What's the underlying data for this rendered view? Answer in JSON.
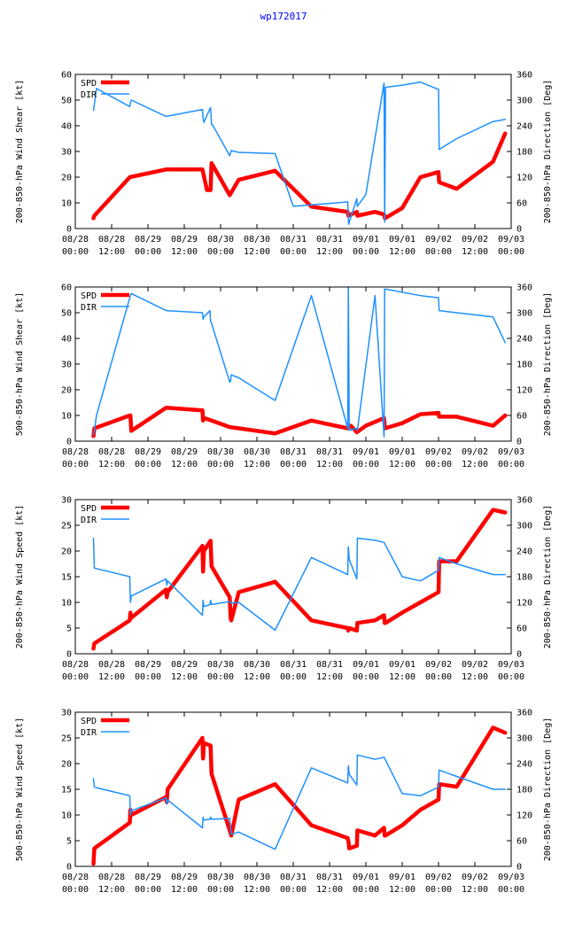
{
  "page_title": "wp172017",
  "colors": {
    "spd": "#ff0000",
    "dir": "#1e90ff",
    "title": "#0000ff",
    "axis": "#000000"
  },
  "chart_data": [
    {
      "type": "line",
      "ylabel": "200-850-hPa Wind Shear [kt]",
      "y2label": "200-850-hPa Direction [Deg]",
      "xlim": [
        0,
        144
      ],
      "ylim": [
        0,
        60
      ],
      "y2lim": [
        0,
        360
      ],
      "yticks": [
        "0",
        "10",
        "20",
        "30",
        "40",
        "50",
        "60"
      ],
      "y2ticks": [
        "0",
        "60",
        "120",
        "180",
        "240",
        "300",
        "360"
      ],
      "xticks_top": [
        "08/28",
        "08/28",
        "08/29",
        "08/29",
        "08/30",
        "08/30",
        "08/31",
        "08/31",
        "09/01",
        "09/01",
        "09/02",
        "09/02",
        "09/03"
      ],
      "xticks_bottom": [
        "00:00",
        "12:00",
        "00:00",
        "12:00",
        "00:00",
        "12:00",
        "00:00",
        "12:00",
        "00:00",
        "12:00",
        "00:00",
        "12:00",
        "00:00"
      ],
      "legend": [
        "SPD",
        "DIR"
      ],
      "series": [
        {
          "name": "SPD",
          "axis": "left",
          "x": [
            6,
            6.3,
            18,
            30,
            42,
            43.5,
            44.7,
            45,
            51,
            54,
            66,
            78,
            90,
            90.2,
            93,
            93.2,
            99,
            102,
            102.3,
            108,
            114,
            120,
            120.2,
            126,
            138,
            142
          ],
          "y": [
            4,
            5,
            20,
            23,
            23,
            15,
            15,
            25.5,
            13,
            19,
            22.5,
            8.5,
            6.5,
            5,
            6.5,
            5,
            6.5,
            5.5,
            4,
            8,
            20,
            22,
            18,
            15.5,
            26,
            37
          ]
        },
        {
          "name": "DIR",
          "axis": "right",
          "x": [
            6,
            6.3,
            7,
            18,
            18.2,
            18.5,
            30,
            42,
            42.2,
            42.5,
            44.5,
            44.7,
            45,
            45.5,
            51,
            51.5,
            54,
            66,
            72,
            90,
            90.3,
            93,
            93.2,
            96,
            102,
            102.2,
            102.5,
            108,
            114,
            120,
            120.2,
            126,
            138,
            142
          ],
          "y": [
            276,
            290,
            327,
            285,
            294,
            300,
            262,
            278,
            258,
            248,
            280,
            282,
            243,
            240,
            170,
            182,
            178,
            175,
            52,
            62,
            10,
            70,
            52,
            80,
            340,
            15,
            330,
            335,
            342,
            325,
            185,
            210,
            250,
            255
          ]
        }
      ]
    },
    {
      "type": "line",
      "ylabel": "500-850-hPa Wind Shear [kt]",
      "y2label": "200-850-hPa Direction [Deg]",
      "xlim": [
        0,
        144
      ],
      "ylim": [
        0,
        60
      ],
      "y2lim": [
        0,
        360
      ],
      "yticks": [
        "0",
        "10",
        "20",
        "30",
        "40",
        "50",
        "60"
      ],
      "y2ticks": [
        "0",
        "60",
        "120",
        "180",
        "240",
        "300",
        "360"
      ],
      "xticks_top": [
        "08/28",
        "08/28",
        "08/29",
        "08/29",
        "08/30",
        "08/30",
        "08/31",
        "08/31",
        "09/01",
        "09/01",
        "09/02",
        "09/02",
        "09/03"
      ],
      "xticks_bottom": [
        "00:00",
        "12:00",
        "00:00",
        "12:00",
        "00:00",
        "12:00",
        "00:00",
        "12:00",
        "00:00",
        "12:00",
        "00:00",
        "12:00",
        "00:00"
      ],
      "legend": [
        "SPD",
        "DIR"
      ],
      "series": [
        {
          "name": "SPD",
          "axis": "left",
          "x": [
            6,
            6.3,
            18,
            18.2,
            18.5,
            30,
            42,
            42.2,
            42.5,
            45,
            51,
            54,
            66,
            78,
            90,
            91,
            93,
            96,
            102,
            102.3,
            108,
            114,
            120,
            120.2,
            126,
            138,
            142
          ],
          "y": [
            2,
            5,
            10,
            10,
            4,
            13,
            12,
            8,
            9,
            8,
            5.5,
            5,
            3,
            8,
            5,
            6,
            3.5,
            6,
            9,
            5,
            7,
            10.5,
            11,
            9.5,
            9.5,
            6,
            10
          ]
        },
        {
          "name": "DIR",
          "axis": "right",
          "x": [
            6,
            6.3,
            7,
            18,
            18.2,
            18.5,
            30,
            42,
            42.2,
            42.5,
            44.5,
            44.7,
            45,
            51,
            51.3,
            51.5,
            54,
            66,
            78,
            90,
            90.2,
            90.5,
            93,
            93.2,
            99,
            102,
            102.2,
            102.5,
            114,
            120,
            120.2,
            126,
            138,
            142
          ],
          "y": [
            15,
            25,
            60,
            335,
            340,
            345,
            305,
            300,
            285,
            290,
            305,
            280,
            275,
            138,
            140,
            155,
            148,
            95,
            340,
            30,
            360,
            25,
            30,
            25,
            340,
            10,
            355,
            355,
            340,
            335,
            305,
            300,
            290,
            230
          ]
        }
      ]
    },
    {
      "type": "line",
      "ylabel": "200-850-hPa Wind Speed [kt]",
      "y2label": "200-850-hPa Direction [Deg]",
      "xlim": [
        0,
        144
      ],
      "ylim": [
        0,
        30
      ],
      "y2lim": [
        0,
        360
      ],
      "yticks": [
        "0",
        "5",
        "10",
        "15",
        "20",
        "25",
        "30"
      ],
      "y2ticks": [
        "0",
        "60",
        "120",
        "180",
        "240",
        "300",
        "360"
      ],
      "xticks_top": [
        "08/28",
        "08/28",
        "08/29",
        "08/29",
        "08/30",
        "08/30",
        "08/31",
        "08/31",
        "09/01",
        "09/01",
        "09/02",
        "09/02",
        "09/03"
      ],
      "xticks_bottom": [
        "00:00",
        "12:00",
        "00:00",
        "12:00",
        "00:00",
        "12:00",
        "00:00",
        "12:00",
        "00:00",
        "12:00",
        "00:00",
        "12:00",
        "00:00"
      ],
      "legend": [
        "SPD",
        "DIR"
      ],
      "series": [
        {
          "name": "SPD",
          "axis": "left",
          "x": [
            6,
            6.3,
            18,
            18.2,
            18.5,
            30,
            30.2,
            30.5,
            42,
            42.2,
            42.5,
            44.7,
            45,
            51,
            51.3,
            51.5,
            54,
            66,
            78,
            90,
            90.2,
            90.5,
            93,
            93.2,
            99,
            102,
            102.2,
            102.5,
            108,
            114,
            120,
            120.2,
            126,
            138,
            142
          ],
          "y": [
            1,
            2,
            6.5,
            8,
            7,
            12.5,
            11,
            12,
            21,
            16,
            20,
            22,
            17,
            11,
            7,
            6.5,
            12,
            14,
            6.5,
            5,
            4.5,
            5,
            4.5,
            6,
            6.5,
            7.5,
            6,
            6,
            8,
            10,
            12,
            18,
            18,
            28,
            27.5
          ]
        },
        {
          "name": "DIR",
          "axis": "right",
          "x": [
            6,
            6.3,
            18,
            18.2,
            18.5,
            30,
            30.2,
            30.5,
            42,
            42.2,
            42.5,
            44.5,
            44.7,
            45,
            51,
            51.5,
            54,
            66,
            78,
            90,
            90.2,
            90.5,
            93,
            93.2,
            99,
            102,
            108,
            114,
            120,
            120.2,
            126,
            138,
            142
          ],
          "y": [
            270,
            200,
            180,
            120,
            135,
            175,
            160,
            170,
            90,
            125,
            110,
            115,
            125,
            115,
            122,
            118,
            120,
            55,
            225,
            185,
            250,
            220,
            175,
            270,
            265,
            260,
            180,
            170,
            195,
            225,
            210,
            185,
            185
          ]
        }
      ]
    },
    {
      "type": "line",
      "ylabel": "500-850-hPa Wind Speed [kt]",
      "y2label": "200-850-hPa Direction [Deg]",
      "xlim": [
        0,
        144
      ],
      "ylim": [
        0,
        30
      ],
      "y2lim": [
        0,
        360
      ],
      "yticks": [
        "0",
        "5",
        "10",
        "15",
        "20",
        "25",
        "30"
      ],
      "y2ticks": [
        "0",
        "60",
        "120",
        "180",
        "240",
        "300",
        "360"
      ],
      "xticks_top": [
        "08/28",
        "08/28",
        "08/29",
        "08/29",
        "08/30",
        "08/30",
        "08/31",
        "08/31",
        "09/01",
        "09/01",
        "09/02",
        "09/02",
        "09/03"
      ],
      "xticks_bottom": [
        "00:00",
        "12:00",
        "00:00",
        "12:00",
        "00:00",
        "12:00",
        "00:00",
        "12:00",
        "00:00",
        "12:00",
        "00:00",
        "12:00",
        "00:00"
      ],
      "legend": [
        "SPD",
        "DIR"
      ],
      "series": [
        {
          "name": "SPD",
          "axis": "left",
          "x": [
            6,
            6.3,
            18,
            18.2,
            18.5,
            30,
            30.2,
            30.5,
            42,
            42.2,
            42.5,
            44.7,
            45,
            51,
            51.3,
            51.5,
            54,
            66,
            78,
            90,
            90.2,
            90.5,
            93,
            93.2,
            99,
            102,
            102.2,
            102.5,
            108,
            114,
            120,
            120.2,
            126,
            138,
            142
          ],
          "y": [
            0.5,
            3.5,
            8.5,
            11,
            10,
            13.5,
            12.5,
            15,
            25,
            21,
            24,
            23.5,
            18,
            7,
            6.5,
            6,
            13,
            16,
            8,
            5.5,
            5,
            3.5,
            4,
            7,
            6,
            7.5,
            6,
            6,
            8,
            11,
            13,
            16,
            15.5,
            27,
            26
          ]
        },
        {
          "name": "DIR",
          "axis": "right",
          "x": [
            6,
            6.3,
            18,
            18.2,
            18.5,
            30,
            30.2,
            30.5,
            42,
            42.2,
            42.5,
            44.5,
            44.7,
            45,
            51,
            51.5,
            54,
            66,
            78,
            90,
            90.2,
            90.5,
            93,
            93.2,
            99,
            102,
            108,
            114,
            120,
            120.2,
            126,
            138,
            142
          ],
          "y": [
            205,
            185,
            165,
            120,
            130,
            160,
            145,
            155,
            90,
            115,
            108,
            110,
            115,
            110,
            112,
            75,
            80,
            40,
            230,
            195,
            235,
            215,
            190,
            260,
            250,
            255,
            170,
            165,
            185,
            225,
            210,
            180,
            180
          ]
        }
      ]
    }
  ]
}
